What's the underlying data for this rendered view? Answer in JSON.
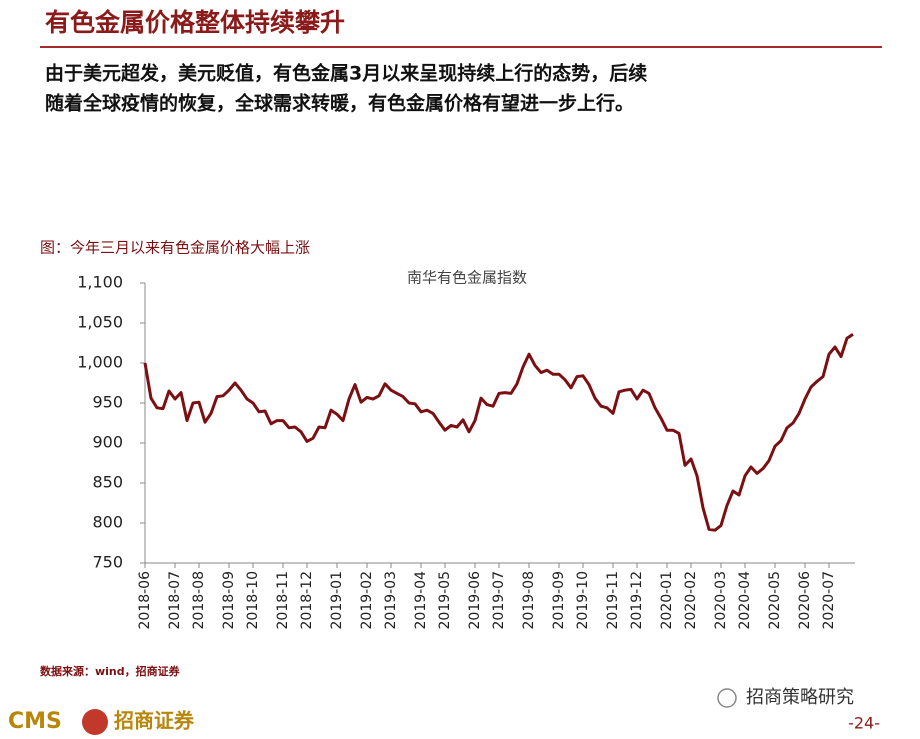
{
  "header": {
    "title": "有色金属价格整体持续攀升"
  },
  "body": {
    "lines": [
      "由于美元超发，美元贬值，有色金属3月以来呈现持续上行的态势，后续",
      "随着全球疫情的恢复，全球需求转暖，有色金属价格有望进一步上行。"
    ]
  },
  "figure_caption": "图：今年三月以来有色金属价格大幅上涨",
  "chart_data": {
    "type": "line",
    "title": "南华有色金属指数",
    "categories": [
      "2018-06",
      null,
      null,
      null,
      null,
      "2018-07",
      null,
      null,
      null,
      "2018-08",
      null,
      null,
      null,
      null,
      "2018-09",
      null,
      null,
      null,
      "2018-10",
      null,
      null,
      null,
      null,
      "2018-11",
      null,
      null,
      null,
      "2018-12",
      null,
      null,
      null,
      null,
      "2019-01",
      null,
      null,
      null,
      null,
      "2019-02",
      null,
      null,
      null,
      "2019-03",
      null,
      null,
      null,
      null,
      "2019-04",
      null,
      null,
      null,
      "2019-05",
      null,
      null,
      null,
      null,
      "2019-06",
      null,
      null,
      null,
      "2019-07",
      null,
      null,
      null,
      null,
      "2019-08",
      null,
      null,
      null,
      null,
      "2019-09",
      null,
      null,
      null,
      "2019-10",
      null,
      null,
      null,
      null,
      "2019-11",
      null,
      null,
      null,
      "2019-12",
      null,
      null,
      null,
      null,
      "2020-01",
      null,
      null,
      null,
      "2020-02",
      null,
      null,
      null,
      null,
      "2020-03",
      null,
      null,
      null,
      "2020-04",
      null,
      null,
      null,
      null,
      "2020-05",
      null,
      null,
      null,
      null,
      "2020-06",
      null,
      null,
      null,
      "2020-07",
      null,
      null,
      null,
      null
    ],
    "series": [
      {
        "name": "南华有色金属指数",
        "color": "#7b0f12",
        "values": [
          1000,
          956,
          944,
          943,
          965,
          955,
          963,
          928,
          950,
          951,
          926,
          937,
          958,
          959,
          966,
          975,
          966,
          955,
          950,
          939,
          940,
          924,
          928,
          928,
          919,
          920,
          914,
          902,
          906,
          920,
          919,
          941,
          936,
          928,
          955,
          973,
          951,
          957,
          955,
          959,
          974,
          966,
          962,
          958,
          950,
          949,
          939,
          941,
          937,
          926,
          916,
          922,
          920,
          929,
          914,
          928,
          956,
          948,
          946,
          962,
          963,
          962,
          974,
          995,
          1011,
          997,
          988,
          991,
          986,
          986,
          979,
          969,
          983,
          984,
          973,
          956,
          946,
          944,
          937,
          964,
          966,
          967,
          955,
          966,
          962,
          944,
          931,
          916,
          916,
          912,
          872,
          880,
          859,
          819,
          792,
          791,
          797,
          822,
          840,
          835,
          859,
          870,
          862,
          868,
          878,
          896,
          903,
          919,
          925,
          937,
          955,
          970,
          977,
          983,
          1011,
          1020,
          1008,
          1031,
          1036
        ]
      }
    ],
    "ylim": [
      750,
      1100
    ],
    "yticks": [
      {
        "value": 750,
        "label": "750"
      },
      {
        "value": 800,
        "label": "800"
      },
      {
        "value": 850,
        "label": "850"
      },
      {
        "value": 900,
        "label": "900"
      },
      {
        "value": 950,
        "label": "950"
      },
      {
        "value": 1000,
        "label": "1,000"
      },
      {
        "value": 1050,
        "label": "1,050"
      },
      {
        "value": 1100,
        "label": "1,100"
      }
    ],
    "grid": false
  },
  "source": "数据来源：wind，招商证券",
  "footer": {
    "logo": "CMS",
    "company": "招商证券",
    "account": "招商策略研究",
    "page": "-24-"
  }
}
